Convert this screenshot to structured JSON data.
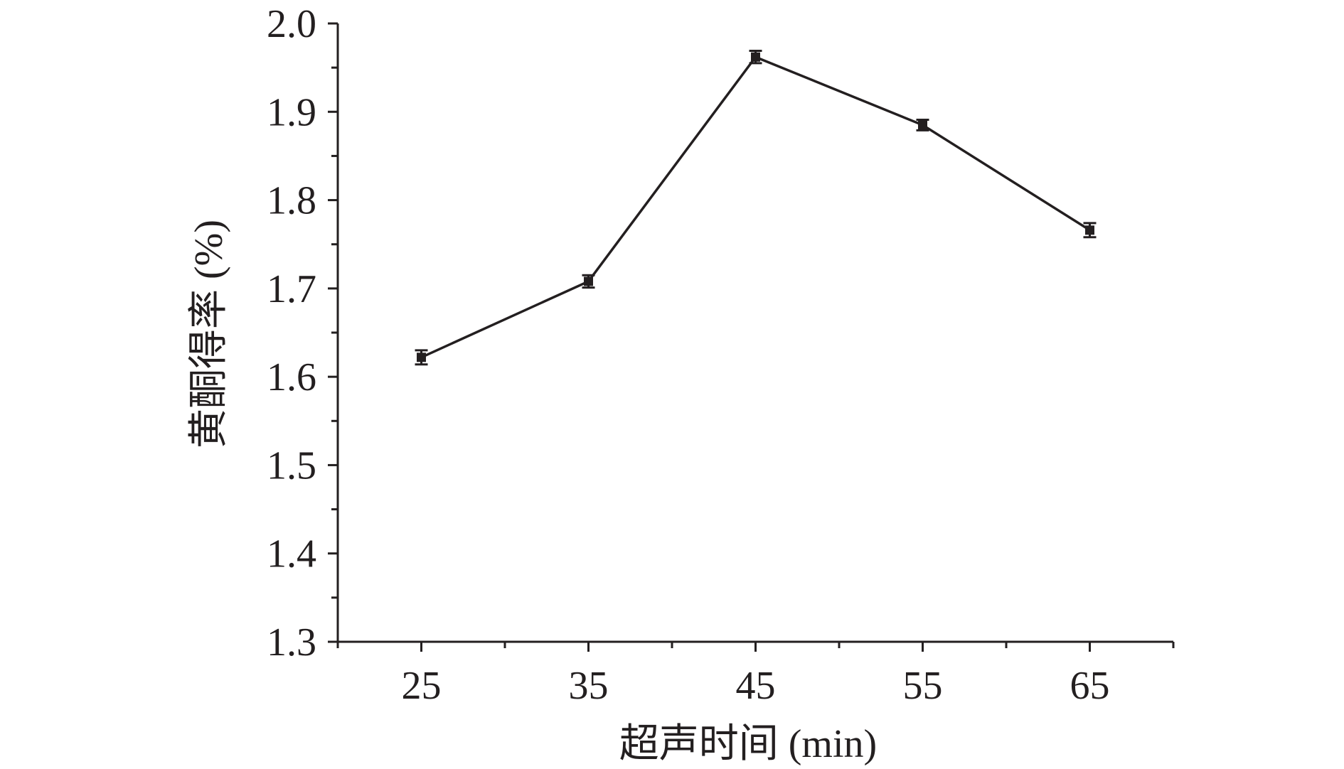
{
  "chart_data": {
    "type": "line",
    "xlabel": "超声时间 (min)",
    "ylabel": "黄酮得率 (%)",
    "x": [
      25,
      35,
      45,
      55,
      65
    ],
    "xticks": [
      "25",
      "35",
      "45",
      "55",
      "65"
    ],
    "xlim": [
      20,
      70
    ],
    "yticks": [
      "1.3",
      "1.4",
      "1.5",
      "1.6",
      "1.7",
      "1.8",
      "1.9",
      "2.0"
    ],
    "ylim": [
      1.3,
      2.0
    ],
    "series": [
      {
        "values": [
          1.622,
          1.708,
          1.962,
          1.885,
          1.766
        ],
        "errors": [
          0.008,
          0.007,
          0.007,
          0.006,
          0.008
        ]
      }
    ],
    "grid": false,
    "legend": "none",
    "colors": {
      "line": "#231f20",
      "axis": "#231f20"
    }
  }
}
